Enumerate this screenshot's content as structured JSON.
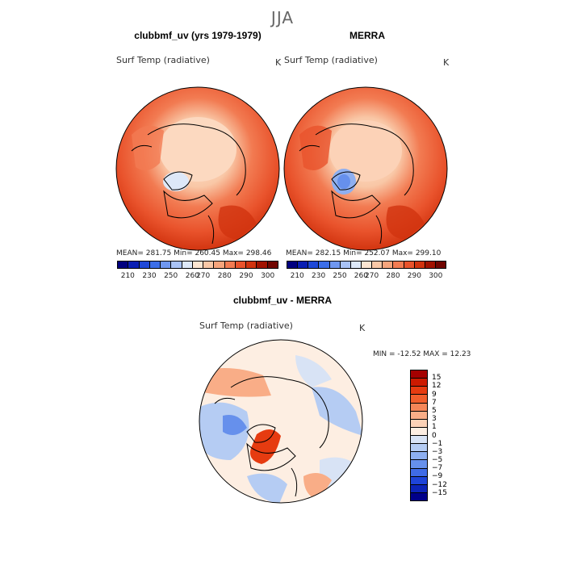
{
  "title": "JJA",
  "panels": [
    {
      "heading": "clubbmf_uv (yrs 1979-1979)",
      "variable": "Surf Temp (radiative)",
      "unit": "K",
      "stats": "MEAN= 281.75   Min= 260.45   Max= 298.46"
    },
    {
      "heading": "MERRA",
      "variable": "Surf Temp (radiative)",
      "unit": "K",
      "stats": "MEAN= 282.15   Min= 252.07   Max= 299.10"
    },
    {
      "heading": "clubbmf_uv - MERRA",
      "variable": "Surf Temp (radiative)",
      "unit": "K",
      "stats": "MIN = -12.52 MAX =  12.23"
    }
  ],
  "colorbar_abs": {
    "colors": [
      "#00007f",
      "#0a1fb3",
      "#1e48d8",
      "#3c6ee8",
      "#6f97f0",
      "#a9c2f5",
      "#dde8f8",
      "#fde5d1",
      "#f9c7a6",
      "#f6a47c",
      "#f27b52",
      "#e9532c",
      "#d1330f",
      "#a11200",
      "#700500"
    ],
    "labels": [
      "210",
      "230",
      "250",
      "260",
      "270",
      "280",
      "290",
      "300"
    ]
  },
  "colorbar_diff": {
    "colors": [
      "#a50000",
      "#cc1a00",
      "#e63b10",
      "#f15e2c",
      "#f58658",
      "#f9ad87",
      "#fcd2b7",
      "#fdeee2",
      "#d8e3f5",
      "#b5ccf3",
      "#8eaff0",
      "#6690ec",
      "#3f6be6",
      "#1e44d8",
      "#0c24b8",
      "#00008a"
    ],
    "labels": [
      "15",
      "12",
      "9",
      "7",
      "5",
      "3",
      "1",
      "0",
      "−1",
      "−3",
      "−5",
      "−7",
      "−9",
      "−12",
      "−15"
    ]
  }
}
